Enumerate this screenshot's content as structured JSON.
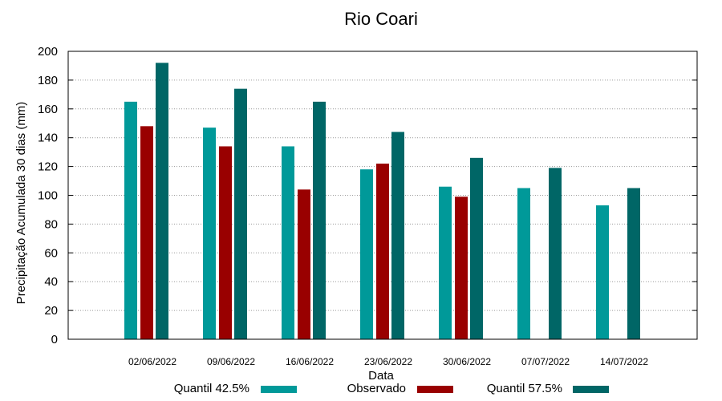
{
  "chart_data": {
    "type": "bar",
    "title": "Rio Coari",
    "xlabel": "Data",
    "ylabel": "Precipitação Acumulada 30 dias (mm)",
    "ylim": [
      0,
      200
    ],
    "yticks": [
      0,
      20,
      40,
      60,
      80,
      100,
      120,
      140,
      160,
      180,
      200
    ],
    "grid": true,
    "legend_position": "bottom",
    "categories": [
      "02/06/2022",
      "09/06/2022",
      "16/06/2022",
      "23/06/2022",
      "30/06/2022",
      "07/07/2022",
      "14/07/2022"
    ],
    "series": [
      {
        "name": "Quantil 42.5%",
        "color": "#009999",
        "values": [
          165,
          147,
          134,
          118,
          106,
          105,
          93
        ]
      },
      {
        "name": "Observado",
        "color": "#990000",
        "values": [
          148,
          134,
          104,
          122,
          99,
          null,
          null
        ]
      },
      {
        "name": "Quantil 57.5%",
        "color": "#006666",
        "values": [
          192,
          174,
          165,
          144,
          126,
          119,
          105
        ]
      }
    ]
  }
}
